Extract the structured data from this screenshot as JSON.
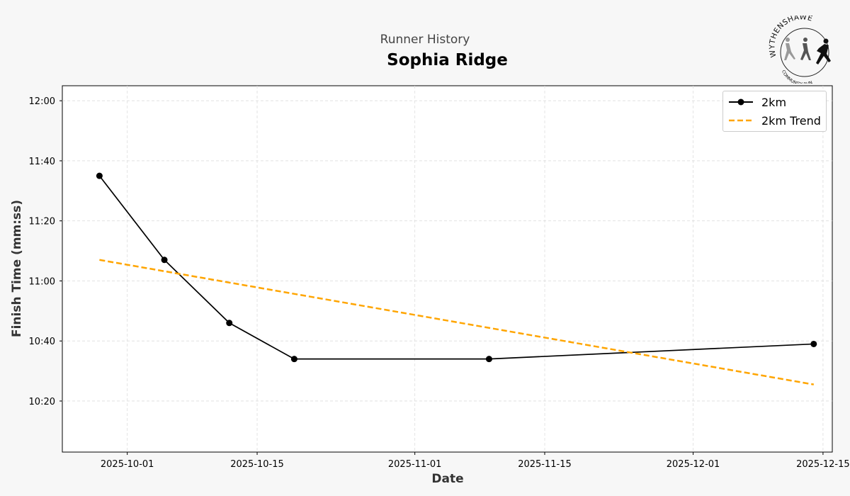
{
  "header": {
    "subtitle": "Runner History",
    "title": "Sophia Ridge",
    "logo_text_top": "WYTHENSHAWE",
    "logo_text_bottom": "COMMUNITY RUN"
  },
  "colors": {
    "background": "#f7f7f7",
    "plot_background": "#ffffff",
    "series_line": "#000000",
    "trend_line": "#FFA500",
    "grid": "#dddddd"
  },
  "chart_data": {
    "type": "line",
    "xlabel": "Date",
    "ylabel": "Finish Time (mm:ss)",
    "x_ticks": [
      "2025-10-01",
      "2025-10-15",
      "2025-11-01",
      "2025-11-15",
      "2025-12-01",
      "2025-12-15"
    ],
    "y_ticks": [
      "10:20",
      "10:40",
      "11:00",
      "11:20",
      "11:40",
      "12:00"
    ],
    "ylim": [
      "10:03",
      "12:05"
    ],
    "xlim": [
      "2025-09-24",
      "2025-12-16"
    ],
    "grid": true,
    "legend_position": "top-right",
    "series": [
      {
        "name": "2km",
        "style": "solid-with-markers",
        "points": [
          {
            "x": "2025-09-28",
            "y": "11:35"
          },
          {
            "x": "2025-10-05",
            "y": "11:07"
          },
          {
            "x": "2025-10-12",
            "y": "10:46"
          },
          {
            "x": "2025-10-19",
            "y": "10:34"
          },
          {
            "x": "2025-11-09",
            "y": "10:34"
          },
          {
            "x": "2025-12-14",
            "y": "10:39"
          }
        ]
      },
      {
        "name": "2km Trend",
        "style": "dashed",
        "points": [
          {
            "x": "2025-09-28",
            "y": "11:07"
          },
          {
            "x": "2025-12-14",
            "y": "10:25.5"
          }
        ]
      }
    ]
  }
}
